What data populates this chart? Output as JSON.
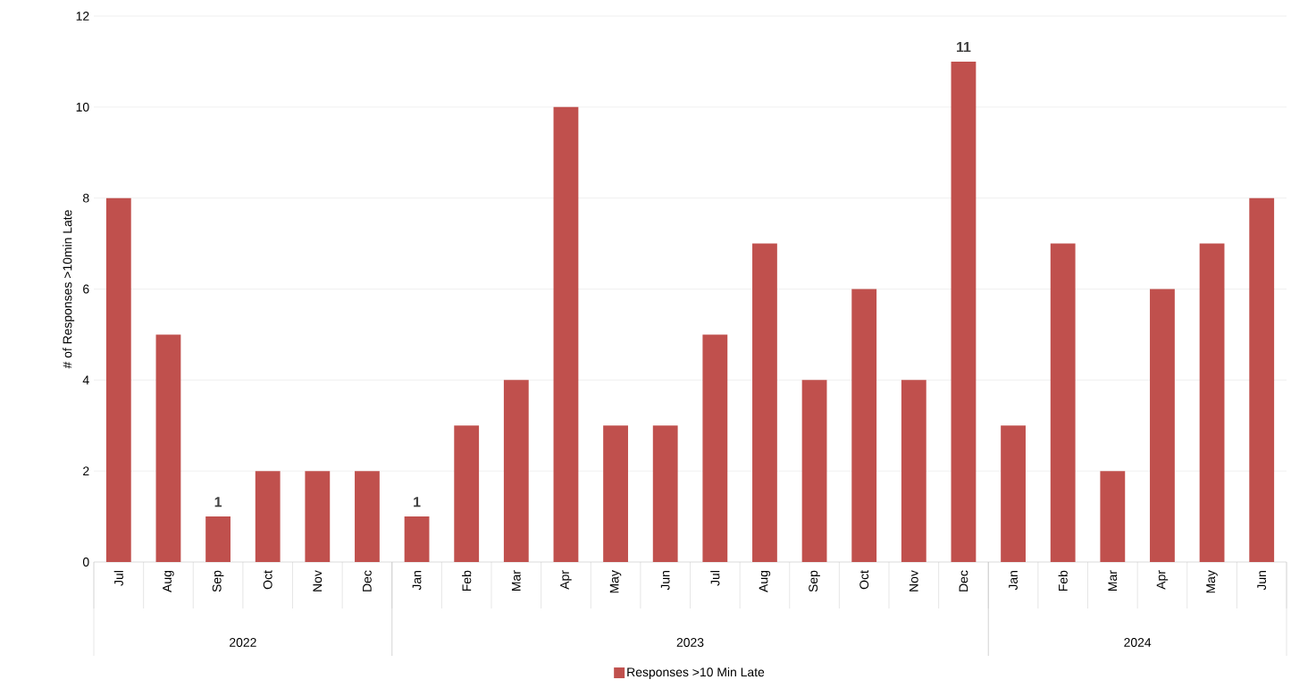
{
  "chart_data": {
    "type": "bar",
    "ylabel": "# of Responses >10min Late",
    "categories": [
      "Jul",
      "Aug",
      "Sep",
      "Oct",
      "Nov",
      "Dec",
      "Jan",
      "Feb",
      "Mar",
      "Apr",
      "May",
      "Jun",
      "Jul",
      "Aug",
      "Sep",
      "Oct",
      "Nov",
      "Dec",
      "Jan",
      "Feb",
      "Mar",
      "Apr",
      "May",
      "Jun"
    ],
    "series": [
      {
        "name": "Responses >10 Min Late",
        "color": "#c0504d",
        "values": [
          8,
          5,
          1,
          2,
          2,
          2,
          1,
          3,
          4,
          10,
          3,
          3,
          5,
          7,
          4,
          6,
          4,
          11,
          3,
          7,
          2,
          6,
          7,
          8
        ],
        "value_labels": [
          null,
          null,
          "1",
          null,
          null,
          null,
          "1",
          null,
          null,
          null,
          null,
          null,
          null,
          null,
          null,
          null,
          null,
          "11",
          null,
          null,
          null,
          null,
          null,
          null
        ]
      }
    ],
    "annotations": [
      "2022",
      "2023",
      "2024"
    ],
    "ylim": [
      0,
      12
    ],
    "yticks": [
      0,
      2,
      4,
      6,
      8,
      10,
      12
    ],
    "grid": "y",
    "legend": "bottom"
  }
}
